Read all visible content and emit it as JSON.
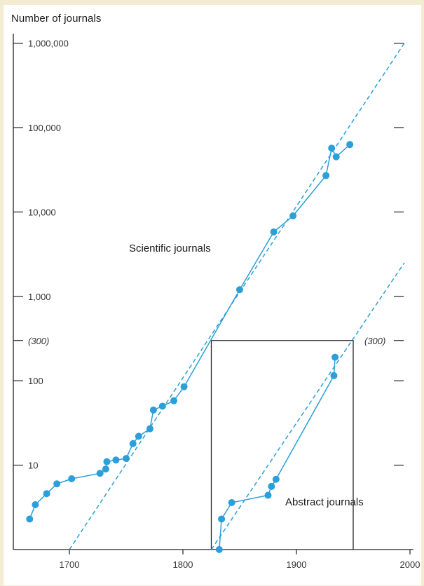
{
  "chart_data": {
    "type": "scatter",
    "ylabel": "Number of journals",
    "y_scale": "log",
    "ylim": [
      1,
      1000000
    ],
    "xlim": [
      1665,
      2000
    ],
    "x_ticks": [
      1700,
      1800,
      1900,
      2000
    ],
    "x_tick_labels": [
      "1700",
      "1800",
      "1900",
      "2000"
    ],
    "y_ticks": [
      10,
      100,
      1000,
      10000,
      100000,
      1000000
    ],
    "y_tick_labels": [
      "10",
      "100",
      "1,000",
      "10,000",
      "100,000",
      "1,000,000"
    ],
    "threshold": {
      "value": 300,
      "label": "(300)"
    },
    "box": {
      "x_start": 1825,
      "x_end": 1950,
      "y_top": 300
    },
    "grid": false,
    "legend": "none",
    "series": [
      {
        "name": "Scientific journals",
        "color": "#2a9fd8",
        "x": [
          1665,
          1670,
          1680,
          1689,
          1702,
          1727,
          1732,
          1733,
          1741,
          1750,
          1756,
          1761,
          1771,
          1774,
          1782,
          1792,
          1801,
          1850,
          1880,
          1897,
          1926,
          1931,
          1935,
          1947
        ],
        "y": [
          2.3,
          3.4,
          4.6,
          6,
          6.9,
          8,
          9,
          11,
          11.5,
          12,
          18,
          22,
          27,
          45,
          50,
          58,
          85,
          1200,
          5800,
          9000,
          27000,
          57000,
          45000,
          63000
        ]
      },
      {
        "name": "Abstract journals",
        "color": "#2a9fd8",
        "x": [
          1832,
          1834,
          1843,
          1875,
          1878,
          1882,
          1933,
          1934
        ],
        "y": [
          1,
          2.3,
          3.6,
          4.4,
          5.6,
          6.8,
          115,
          190
        ]
      }
    ],
    "trend_lines": [
      {
        "name": "scientific-trend",
        "x": [
          1700,
          1995
        ],
        "y": [
          1,
          1000000
        ]
      },
      {
        "name": "abstract-trend",
        "x": [
          1825,
          1995
        ],
        "y": [
          1,
          2500
        ]
      }
    ]
  }
}
